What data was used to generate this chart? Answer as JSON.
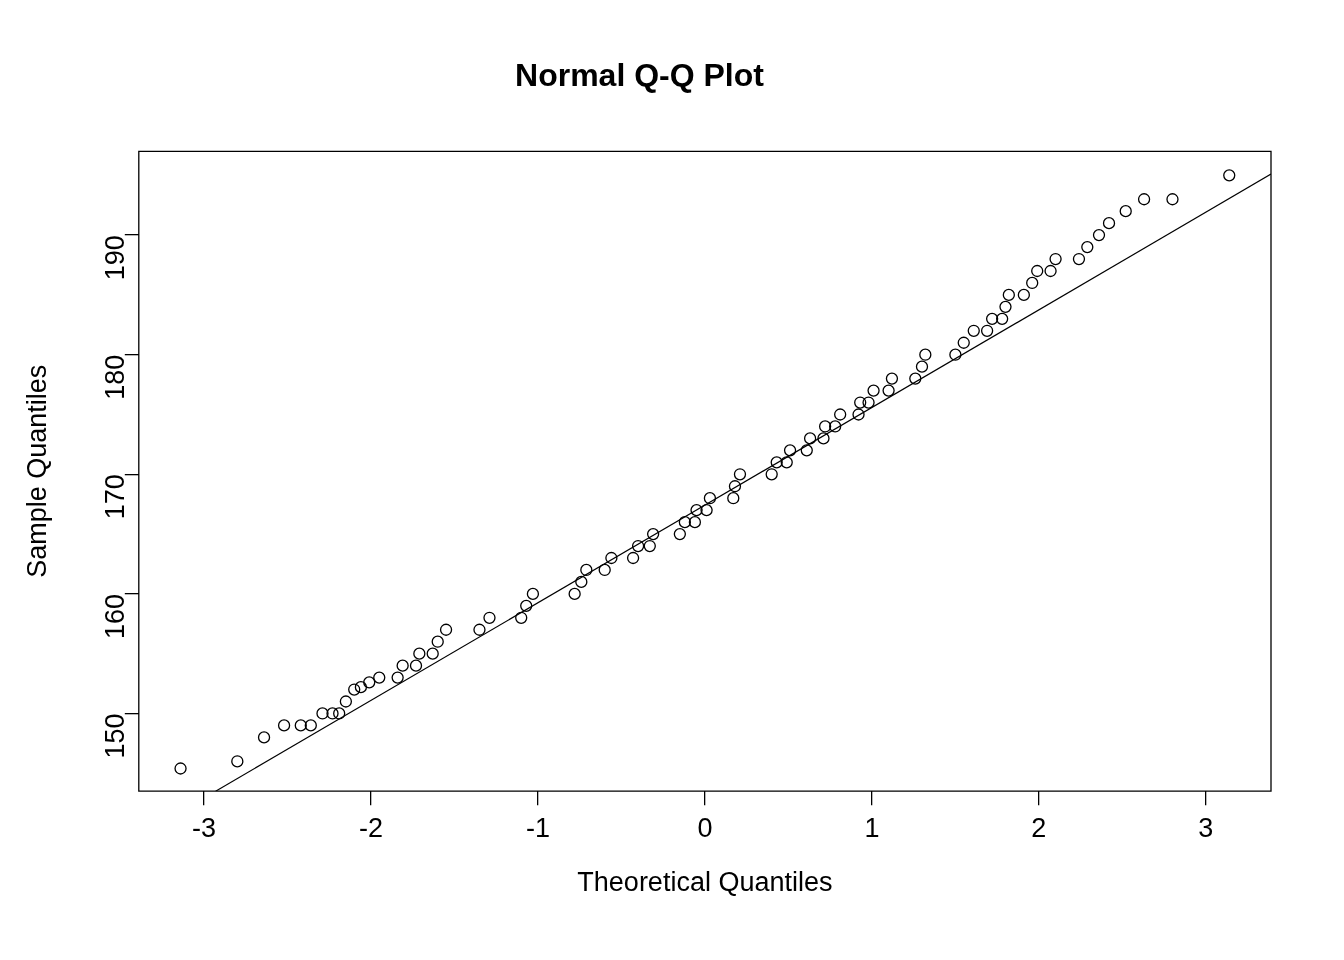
{
  "chart_data": {
    "type": "scatter",
    "title": "Normal Q-Q Plot",
    "xlabel": "Theoretical Quantiles",
    "ylabel": "Sample Quantiles",
    "xlim": [
      -3.39,
      3.39
    ],
    "xticks": [
      -3,
      -2,
      -1,
      0,
      1,
      2,
      3
    ],
    "ylim": [
      143.5,
      197
    ],
    "yticks": [
      150,
      160,
      170,
      180,
      190
    ],
    "grid": false,
    "legend": false,
    "series": [
      {
        "marker": "circle",
        "color": "#000000",
        "x": [
          -3.14,
          -2.8,
          -2.64,
          -2.52,
          -2.42,
          -2.36,
          -2.29,
          -2.23,
          -2.19,
          -2.15,
          -2.1,
          -2.06,
          -2.01,
          -1.95,
          -1.84,
          -1.81,
          -1.73,
          -1.71,
          -1.63,
          -1.6,
          -1.55,
          -1.35,
          -1.29,
          -1.1,
          -1.07,
          -1.03,
          -0.78,
          -0.74,
          -0.71,
          -0.6,
          -0.56,
          -0.43,
          -0.4,
          -0.33,
          -0.31,
          -0.15,
          -0.12,
          -0.06,
          -0.05,
          0.01,
          0.03,
          0.17,
          0.18,
          0.21,
          0.4,
          0.43,
          0.49,
          0.51,
          0.61,
          0.63,
          0.71,
          0.72,
          0.78,
          0.81,
          0.92,
          0.93,
          0.98,
          1.01,
          1.1,
          1.12,
          1.26,
          1.3,
          1.32,
          1.5,
          1.55,
          1.61,
          1.69,
          1.72,
          1.78,
          1.8,
          1.82,
          1.91,
          1.96,
          1.99,
          2.07,
          2.1,
          2.24,
          2.29,
          2.36,
          2.42,
          2.52,
          2.63,
          2.8,
          3.14
        ],
        "values": [
          145.4,
          146,
          148,
          149,
          149,
          149,
          150,
          150,
          150,
          151,
          152,
          152.2,
          152.6,
          153,
          153,
          154,
          154,
          155,
          155,
          156,
          157,
          157,
          158,
          158,
          159,
          160,
          160,
          161,
          162,
          162,
          163,
          163,
          164,
          164,
          165,
          165,
          166,
          166,
          167,
          167,
          168,
          168,
          169,
          170,
          170,
          171,
          171,
          172,
          172,
          173,
          173,
          174,
          174,
          175,
          175,
          176,
          176,
          177,
          177,
          178,
          178,
          179,
          180,
          180,
          181,
          182,
          182,
          183,
          183,
          184,
          185,
          185,
          186,
          187,
          187,
          188,
          188,
          189,
          190,
          191,
          192,
          193,
          193,
          195
        ]
      },
      {
        "type": "line",
        "marker": "none",
        "color": "#000000",
        "x": [
          -2.93,
          3.39
        ],
        "values": [
          143.5,
          195.1
        ]
      }
    ]
  }
}
